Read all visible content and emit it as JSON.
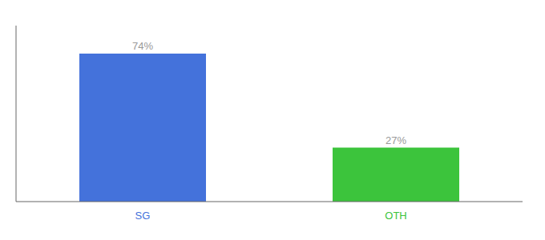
{
  "chart_data": {
    "type": "bar",
    "categories": [
      "SG",
      "OTH"
    ],
    "values": [
      74,
      27
    ],
    "value_labels": [
      "74%",
      "27%"
    ],
    "colors": [
      "#4472DB",
      "#3CC43C"
    ],
    "ylim": [
      0,
      88
    ],
    "data_labels": true,
    "tick_labels": "x",
    "grid": false
  }
}
